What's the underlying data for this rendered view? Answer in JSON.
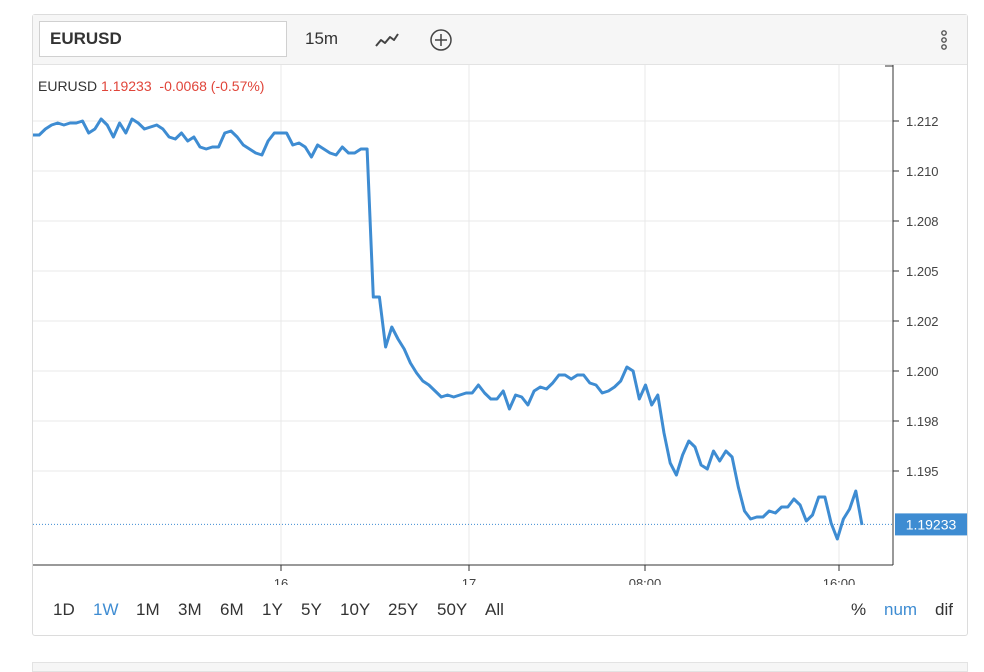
{
  "toolbar": {
    "symbol_value": "EURUSD",
    "interval_label": "15m",
    "chart_type_icon": "line-chart-icon",
    "add_icon": "plus-circle-icon",
    "menu_icon": "more-vertical-icon"
  },
  "legend": {
    "symbol": "EURUSD",
    "last": "1.19233",
    "change": "-0.0068 (-0.57%)"
  },
  "price_label": "1.19233",
  "ranges": [
    "1D",
    "1W",
    "1M",
    "3M",
    "6M",
    "1Y",
    "5Y",
    "10Y",
    "25Y",
    "50Y",
    "All"
  ],
  "active_range": "1W",
  "modes": [
    "%",
    "num",
    "dif"
  ],
  "active_mode": "num",
  "colors": {
    "line": "#3e8cd2",
    "negative": "#e0453a",
    "active": "#3e8cd2"
  },
  "chart_data": {
    "type": "line",
    "title": "",
    "xlabel": "",
    "ylabel": "",
    "y_ticks": [
      "1.212",
      "1.210",
      "1.208",
      "1.205",
      "1.202",
      "1.200",
      "1.198",
      "1.195"
    ],
    "x_ticks": [
      "16",
      "17",
      "08:00",
      "16:00"
    ],
    "series": [
      {
        "values": [
          1.2118,
          1.2118,
          1.2121,
          1.2123,
          1.2124,
          1.2123,
          1.2124,
          1.2124,
          1.2125,
          1.2119,
          1.2121,
          1.2126,
          1.2123,
          1.2117,
          1.2124,
          1.2119,
          1.2126,
          1.2124,
          1.2121,
          1.2122,
          1.2123,
          1.2121,
          1.2117,
          1.2116,
          1.2119,
          1.2115,
          1.2117,
          1.2112,
          1.2111,
          1.2112,
          1.2112,
          1.2119,
          1.212,
          1.2117,
          1.2113,
          1.2111,
          1.2109,
          1.2108,
          1.2115,
          1.2119,
          1.2119,
          1.2119,
          1.2113,
          1.2114,
          1.2112,
          1.2107,
          1.2113,
          1.2111,
          1.2109,
          1.2108,
          1.2112,
          1.2109,
          1.2109,
          1.2111,
          1.2111,
          1.2037,
          1.2037,
          1.2012,
          1.2022,
          1.2016,
          1.2011,
          1.2004,
          1.1999,
          1.1995,
          1.1993,
          1.199,
          1.1987,
          1.1988,
          1.1987,
          1.1988,
          1.1989,
          1.1989,
          1.1993,
          1.1989,
          1.1986,
          1.1986,
          1.199,
          1.1981,
          1.1988,
          1.1987,
          1.1983,
          1.199,
          1.1992,
          1.1991,
          1.1994,
          1.1998,
          1.1998,
          1.1996,
          1.1998,
          1.1998,
          1.1994,
          1.1993,
          1.1989,
          1.199,
          1.1992,
          1.1995,
          1.2002,
          1.2,
          1.1986,
          1.1993,
          1.1983,
          1.1988,
          1.1969,
          1.1954,
          1.1948,
          1.1958,
          1.1965,
          1.1962,
          1.1953,
          1.1951,
          1.196,
          1.1955,
          1.196,
          1.1957,
          1.1942,
          1.193,
          1.1926,
          1.1927,
          1.1927,
          1.193,
          1.1929,
          1.1932,
          1.1932,
          1.1936,
          1.1933,
          1.1925,
          1.1928,
          1.1937,
          1.1937,
          1.1924,
          1.1916,
          1.1926,
          1.1931,
          1.194,
          1.1923
        ]
      }
    ],
    "ylim": [
      1.1903,
      1.2153
    ],
    "last_value": 1.19233,
    "grid": true,
    "legend": "top-left"
  }
}
